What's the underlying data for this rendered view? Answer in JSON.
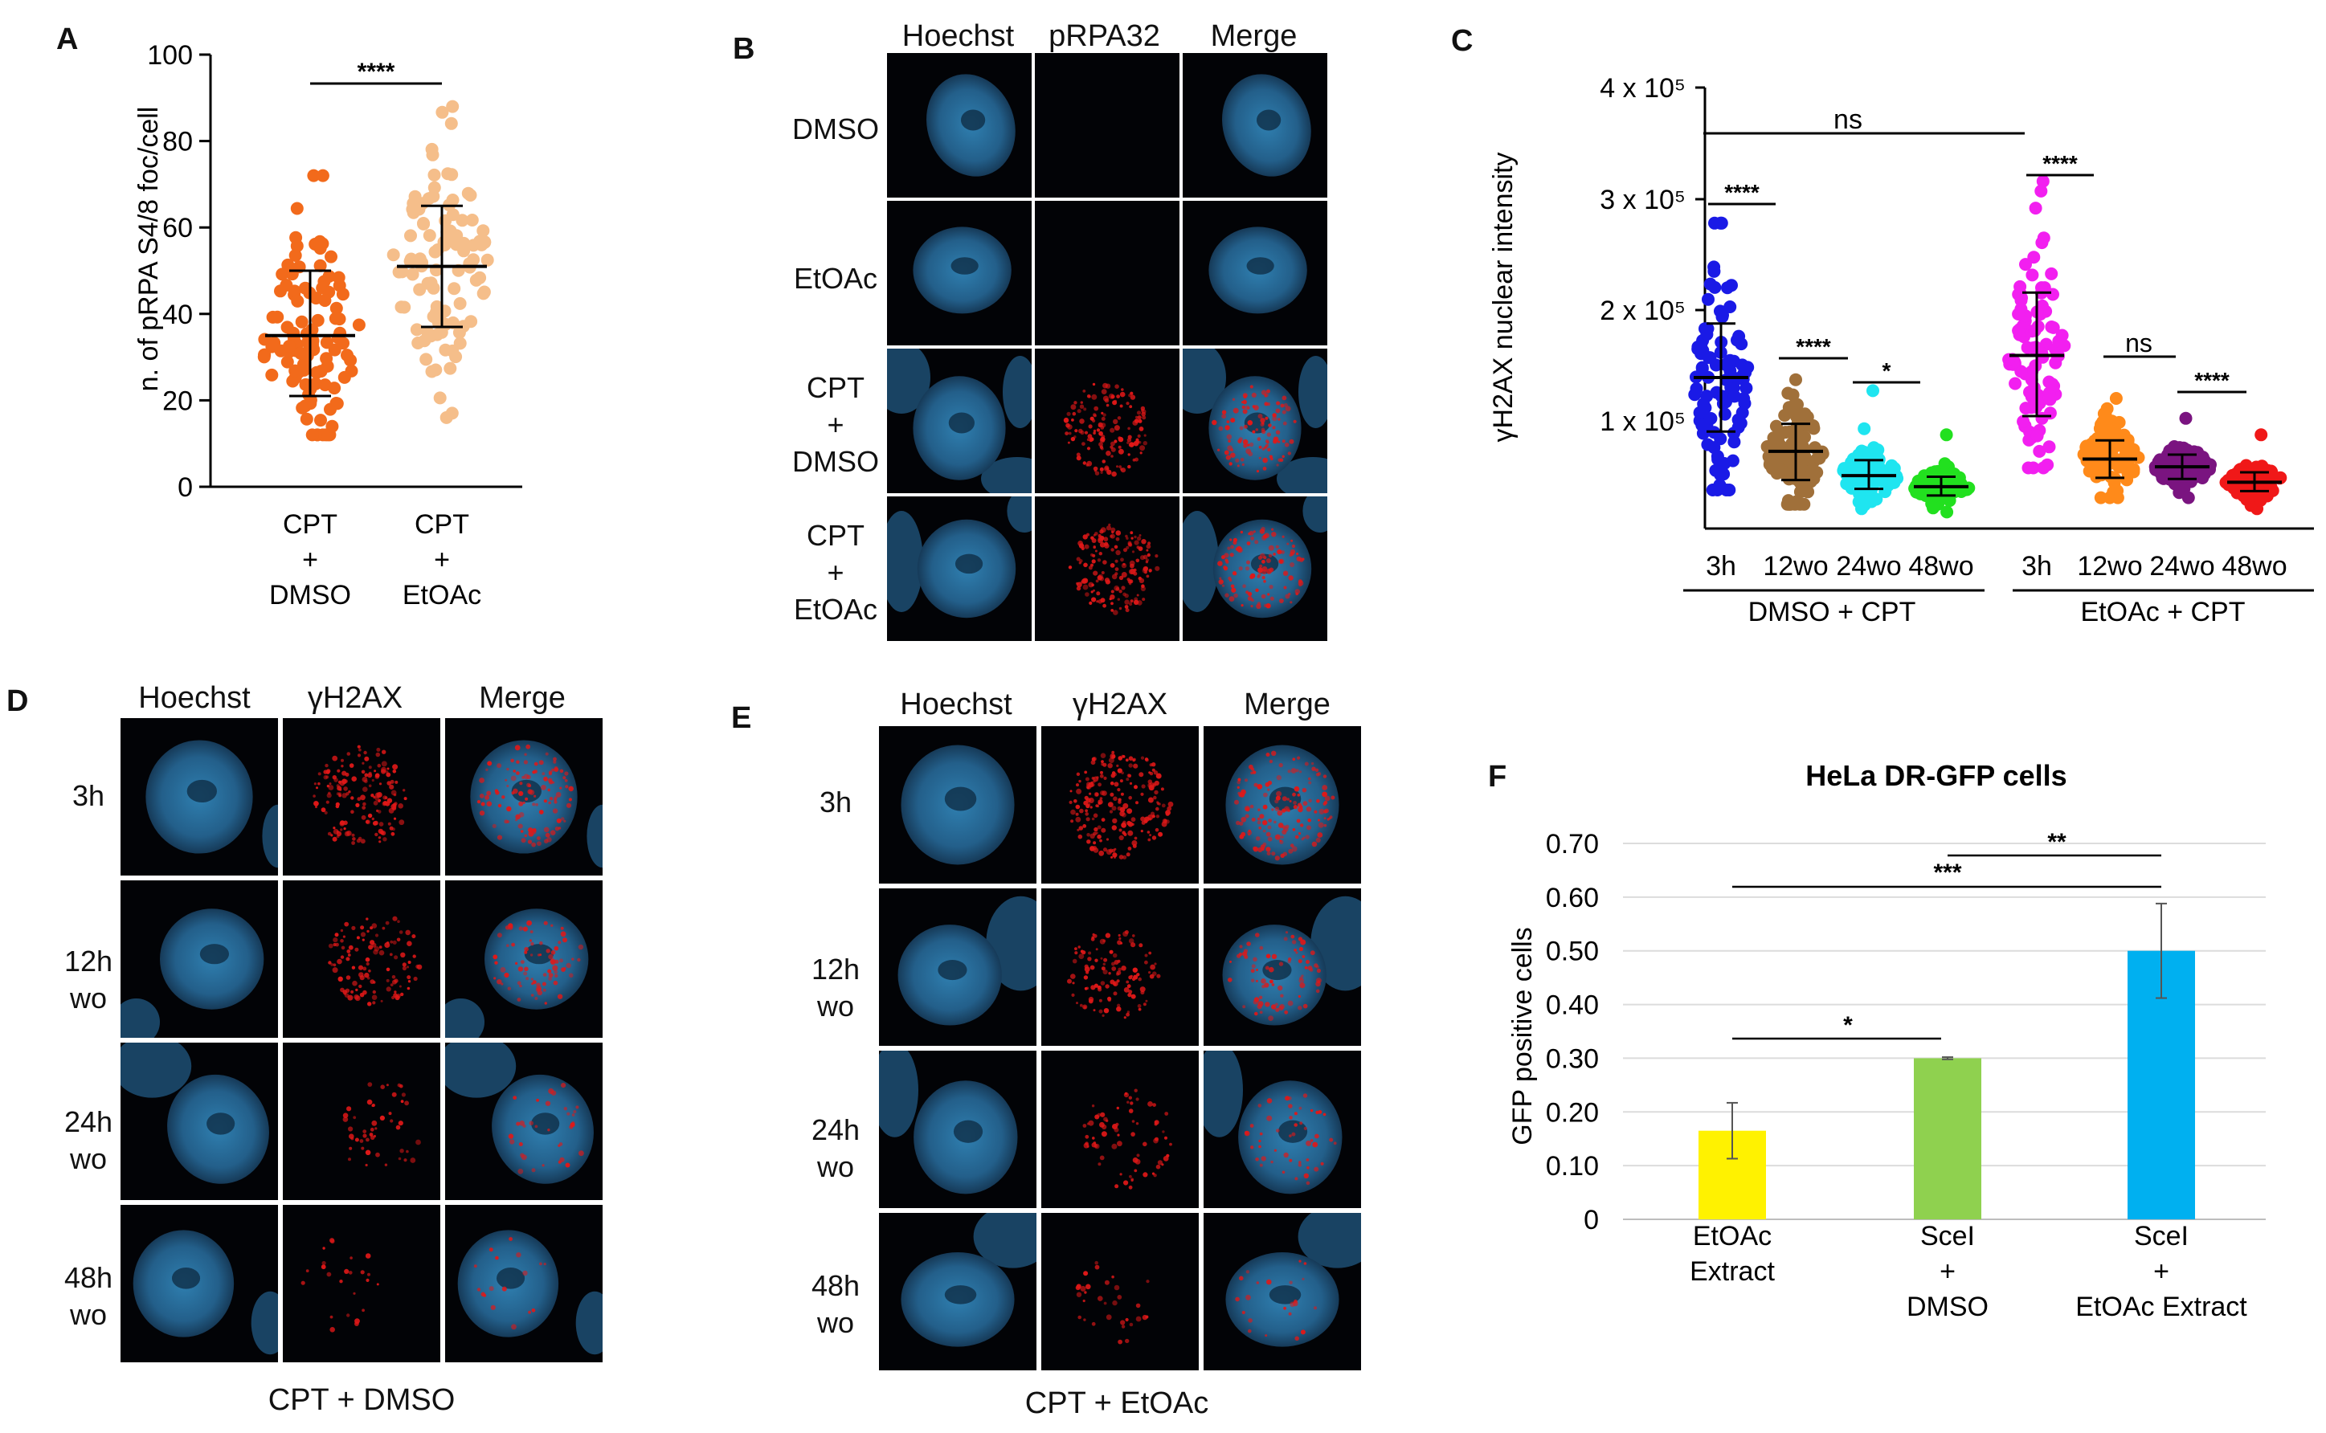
{
  "panels": {
    "a": {
      "label": "A",
      "ylabel": "n. of pRPA S4/8 foc/cell",
      "sig": "****",
      "groups": [
        {
          "lines": [
            "CPT",
            "+",
            "DMSO"
          ],
          "color": "#f26a1b"
        },
        {
          "lines": [
            "CPT",
            "+",
            "EtOAc"
          ],
          "color": "#f5be8a"
        }
      ]
    },
    "b": {
      "label": "B",
      "columns": [
        "Hoechst",
        "pRPA32",
        "Merge"
      ],
      "rows": [
        {
          "lines": [
            "DMSO"
          ]
        },
        {
          "lines": [
            "EtOAc"
          ]
        },
        {
          "lines": [
            "CPT",
            "+",
            "DMSO"
          ]
        },
        {
          "lines": [
            "CPT",
            "+",
            "EtOAc"
          ]
        }
      ]
    },
    "c": {
      "label": "C",
      "ylabel": "γH2AX nuclear intensity",
      "yticks": [
        "4 x 10⁵",
        "3 x 10⁵",
        "2 x 10⁵",
        "1 x 10⁵"
      ],
      "group_titles": [
        "DMSO + CPT",
        "EtOAc + CPT"
      ],
      "categories": [
        "3h",
        "12wo",
        "24wo",
        "48wo",
        "3h",
        "12wo",
        "24wo",
        "48wo"
      ],
      "colors": [
        "#1a1ae6",
        "#a0703a",
        "#1fe5f0",
        "#22e01f",
        "#f21ff0",
        "#ff8a1a",
        "#7a1480",
        "#f01818"
      ],
      "sig": {
        "top": "ns",
        "dmso_a": "****",
        "dmso_b": "****",
        "dmso_c": "*",
        "etoac_a": "****",
        "etoac_b": "ns",
        "etoac_c": "****"
      }
    },
    "d": {
      "label": "D",
      "columns": [
        "Hoechst",
        "γH2AX",
        "Merge"
      ],
      "rows": [
        {
          "lines": [
            "3h"
          ]
        },
        {
          "lines": [
            "12h",
            "wo"
          ]
        },
        {
          "lines": [
            "24h",
            "wo"
          ]
        },
        {
          "lines": [
            "48h",
            "wo"
          ]
        }
      ],
      "caption": "CPT + DMSO"
    },
    "e": {
      "label": "E",
      "columns": [
        "Hoechst",
        "γH2AX",
        "Merge"
      ],
      "rows": [
        {
          "lines": [
            "3h"
          ]
        },
        {
          "lines": [
            "12h",
            "wo"
          ]
        },
        {
          "lines": [
            "24h",
            "wo"
          ]
        },
        {
          "lines": [
            "48h",
            "wo"
          ]
        }
      ],
      "caption": "CPT + EtOAc"
    },
    "f": {
      "label": "F",
      "title": "HeLa DR-GFP cells",
      "ylabel": "GFP positive cells",
      "sig": {
        "a": "*",
        "b": "***",
        "c": "**"
      },
      "category_lines": [
        [
          "EtOAc",
          "Extract"
        ],
        [
          "SceI",
          "+",
          "DMSO"
        ],
        [
          "SceI",
          "+",
          "EtOAc Extract"
        ]
      ],
      "colors": [
        "#fff200",
        "#8fd14f",
        "#00b0f0"
      ]
    }
  },
  "chart_data": [
    {
      "id": "panel-a",
      "type": "scatter",
      "title": "",
      "xlabel": "",
      "ylabel": "n. of pRPA S4/8 foc/cell",
      "ylim": [
        0,
        100
      ],
      "yticks": [
        0,
        20,
        40,
        60,
        80,
        100
      ],
      "categories": [
        "CPT + DMSO",
        "CPT + EtOAc"
      ],
      "series": [
        {
          "name": "CPT + DMSO",
          "mean": 35,
          "sd_low": 21,
          "sd_high": 50,
          "min": 12,
          "max": 72
        },
        {
          "name": "CPT + EtOAc",
          "mean": 51,
          "sd_low": 37,
          "sd_high": 65,
          "min": 16,
          "max": 88
        }
      ]
    },
    {
      "id": "panel-c",
      "type": "scatter",
      "title": "",
      "xlabel": "",
      "ylabel": "γH2AX nuclear intensity",
      "ylim": [
        0,
        400000
      ],
      "categories": [
        "3h",
        "12wo",
        "24wo",
        "48wo",
        "3h",
        "12wo",
        "24wo",
        "48wo"
      ],
      "groups": [
        "DMSO + CPT",
        "DMSO + CPT",
        "DMSO + CPT",
        "DMSO + CPT",
        "EtOAc + CPT",
        "EtOAc + CPT",
        "EtOAc + CPT",
        "EtOAc + CPT"
      ],
      "series": [
        {
          "name": "DMSO + CPT 3h",
          "mean": 137000,
          "sd_low": 88000,
          "sd_high": 186000,
          "min": 35000,
          "max": 277000
        },
        {
          "name": "DMSO + CPT 12wo",
          "mean": 70000,
          "sd_low": 44000,
          "sd_high": 95000,
          "min": 22000,
          "max": 135000
        },
        {
          "name": "DMSO + CPT 24wo",
          "mean": 48000,
          "sd_low": 36000,
          "sd_high": 62000,
          "min": 18000,
          "max": 125000
        },
        {
          "name": "DMSO + CPT 48wo",
          "mean": 38000,
          "sd_low": 30000,
          "sd_high": 47000,
          "min": 15000,
          "max": 85000
        },
        {
          "name": "EtOAc + CPT 3h",
          "mean": 157000,
          "sd_low": 102000,
          "sd_high": 214000,
          "min": 55000,
          "max": 315000
        },
        {
          "name": "EtOAc + CPT 12wo",
          "mean": 63000,
          "sd_low": 46000,
          "sd_high": 80000,
          "min": 28000,
          "max": 118000
        },
        {
          "name": "EtOAc + CPT 24wo",
          "mean": 56000,
          "sd_low": 45000,
          "sd_high": 67000,
          "min": 28000,
          "max": 100000
        },
        {
          "name": "EtOAc + CPT 48wo",
          "mean": 42000,
          "sd_low": 34000,
          "sd_high": 51000,
          "min": 18000,
          "max": 85000
        }
      ]
    },
    {
      "id": "panel-f",
      "type": "bar",
      "title": "HeLa DR-GFP cells",
      "xlabel": "",
      "ylabel": "GFP positive cells",
      "ylim": [
        0,
        0.7
      ],
      "yticks": [
        "0",
        "0.10",
        "0.20",
        "0.30",
        "0.40",
        "0.50",
        "0.60",
        "0.70"
      ],
      "categories": [
        "EtOAc Extract",
        "SceI + DMSO",
        "SceI + EtOAc Extract"
      ],
      "values": [
        0.165,
        0.3,
        0.5
      ],
      "errors": [
        0.052,
        0.002,
        0.088
      ]
    }
  ]
}
